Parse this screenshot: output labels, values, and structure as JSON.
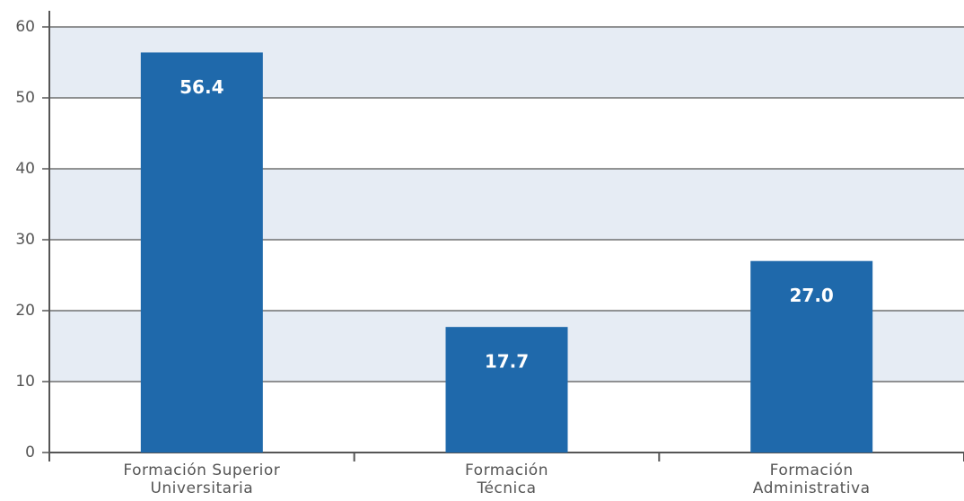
{
  "chart_data": {
    "type": "bar",
    "categories": [
      "Formación Superior\nUniversitaria",
      "Formación\nTécnica",
      "Formación\nAdministrativa"
    ],
    "values": [
      56.4,
      17.7,
      27.0
    ],
    "value_labels": [
      "56.4",
      "17.7",
      "27.0"
    ],
    "color": "#1f69ab",
    "ylim": [
      0,
      60
    ],
    "yticks": [
      0,
      10,
      20,
      30,
      40,
      50,
      60
    ],
    "grid": true
  }
}
